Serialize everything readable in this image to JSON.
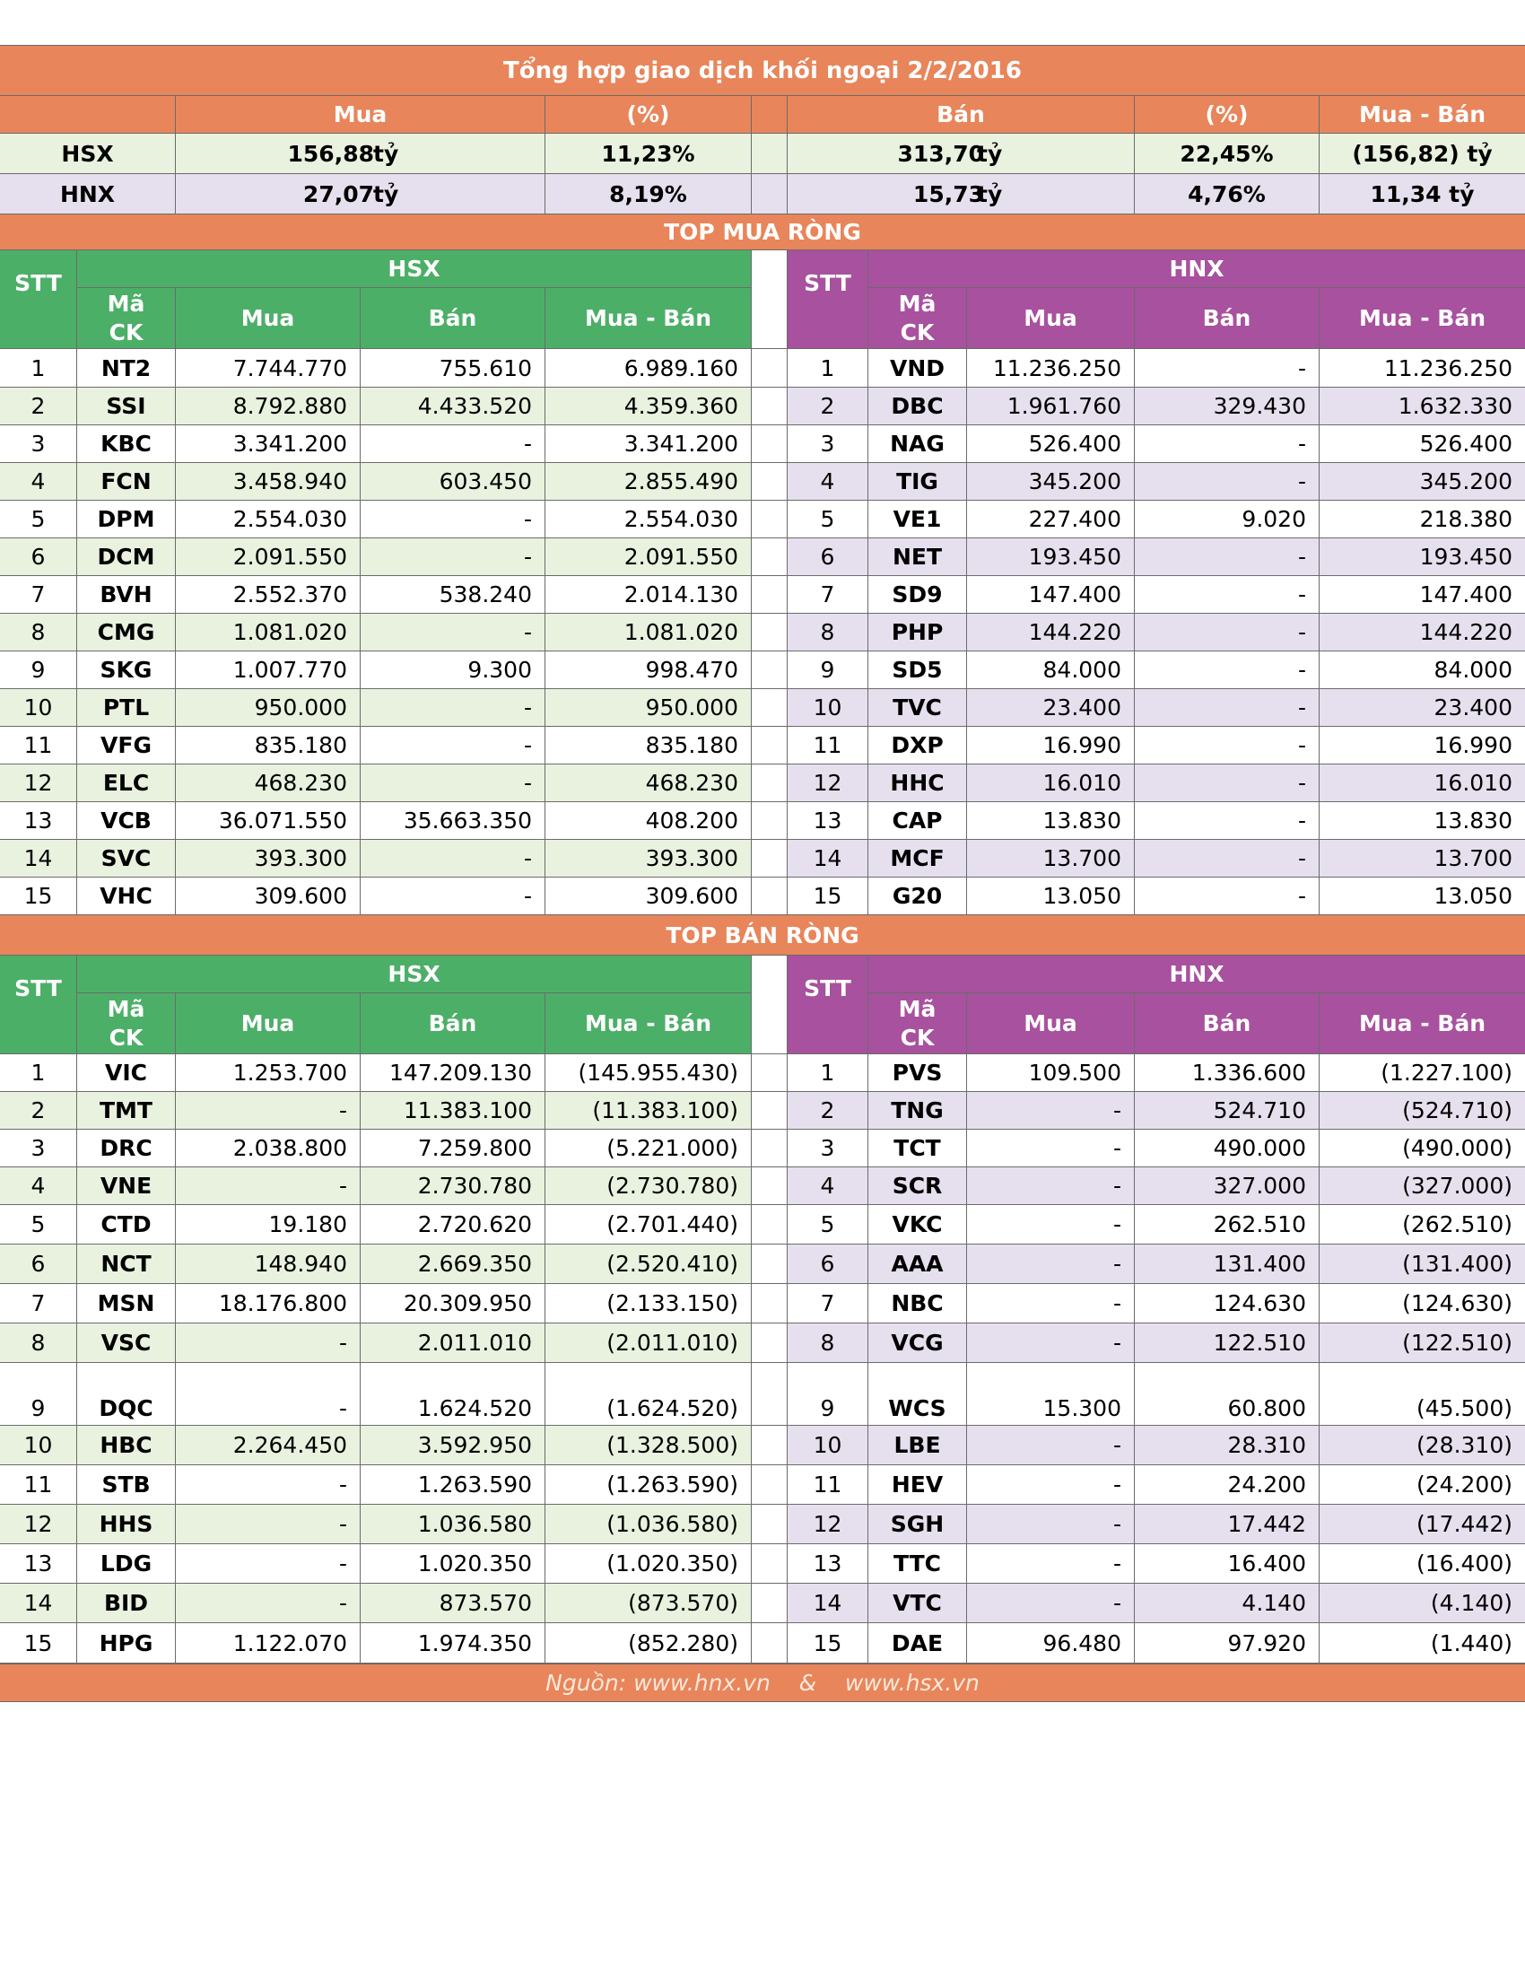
{
  "title": "Tổng hợp giao dịch khối ngoại 2/2/2016",
  "summary": {
    "headers": {
      "mua": "Mua",
      "pct1": "(%)",
      "ban": "Bán",
      "pct2": "(%)",
      "net": "Mua - Bán"
    },
    "unit": "tỷ",
    "rows": [
      {
        "exchange": "HSX",
        "mua": "156,88",
        "mua_pct": "11,23%",
        "ban": "313,70",
        "ban_pct": "22,45%",
        "net": "(156,82) tỷ"
      },
      {
        "exchange": "HNX",
        "mua": "27,07",
        "mua_pct": "8,19%",
        "ban": "15,73",
        "ban_pct": "4,76%",
        "net": "11,34 tỷ"
      }
    ]
  },
  "top_buy": {
    "title": "TOP MUA RÒNG",
    "hsx_label": "HSX",
    "hnx_label": "HNX",
    "headers": {
      "stt": "STT",
      "ma": "Mã",
      "ck": "CK",
      "mua": "Mua",
      "ban": "Bán",
      "net": "Mua - Bán"
    },
    "hsx_rows": [
      [
        "1",
        "NT2",
        "7.744.770",
        "755.610",
        "6.989.160"
      ],
      [
        "2",
        "SSI",
        "8.792.880",
        "4.433.520",
        "4.359.360"
      ],
      [
        "3",
        "KBC",
        "3.341.200",
        "-",
        "3.341.200"
      ],
      [
        "4",
        "FCN",
        "3.458.940",
        "603.450",
        "2.855.490"
      ],
      [
        "5",
        "DPM",
        "2.554.030",
        "-",
        "2.554.030"
      ],
      [
        "6",
        "DCM",
        "2.091.550",
        "-",
        "2.091.550"
      ],
      [
        "7",
        "BVH",
        "2.552.370",
        "538.240",
        "2.014.130"
      ],
      [
        "8",
        "CMG",
        "1.081.020",
        "-",
        "1.081.020"
      ],
      [
        "9",
        "SKG",
        "1.007.770",
        "9.300",
        "998.470"
      ],
      [
        "10",
        "PTL",
        "950.000",
        "-",
        "950.000"
      ],
      [
        "11",
        "VFG",
        "835.180",
        "-",
        "835.180"
      ],
      [
        "12",
        "ELC",
        "468.230",
        "-",
        "468.230"
      ],
      [
        "13",
        "VCB",
        "36.071.550",
        "35.663.350",
        "408.200"
      ],
      [
        "14",
        "SVC",
        "393.300",
        "-",
        "393.300"
      ],
      [
        "15",
        "VHC",
        "309.600",
        "-",
        "309.600"
      ]
    ],
    "hnx_rows": [
      [
        "1",
        "VND",
        "11.236.250",
        "-",
        "11.236.250"
      ],
      [
        "2",
        "DBC",
        "1.961.760",
        "329.430",
        "1.632.330"
      ],
      [
        "3",
        "NAG",
        "526.400",
        "-",
        "526.400"
      ],
      [
        "4",
        "TIG",
        "345.200",
        "-",
        "345.200"
      ],
      [
        "5",
        "VE1",
        "227.400",
        "9.020",
        "218.380"
      ],
      [
        "6",
        "NET",
        "193.450",
        "-",
        "193.450"
      ],
      [
        "7",
        "SD9",
        "147.400",
        "-",
        "147.400"
      ],
      [
        "8",
        "PHP",
        "144.220",
        "-",
        "144.220"
      ],
      [
        "9",
        "SD5",
        "84.000",
        "-",
        "84.000"
      ],
      [
        "10",
        "TVC",
        "23.400",
        "-",
        "23.400"
      ],
      [
        "11",
        "DXP",
        "16.990",
        "-",
        "16.990"
      ],
      [
        "12",
        "HHC",
        "16.010",
        "-",
        "16.010"
      ],
      [
        "13",
        "CAP",
        "13.830",
        "-",
        "13.830"
      ],
      [
        "14",
        "MCF",
        "13.700",
        "-",
        "13.700"
      ],
      [
        "15",
        "G20",
        "13.050",
        "-",
        "13.050"
      ]
    ]
  },
  "top_sell": {
    "title": "TOP BÁN RÒNG",
    "hsx_label": "HSX",
    "hnx_label": "HNX",
    "headers": {
      "stt": "STT",
      "ma": "Mã",
      "ck": "CK",
      "mua": "Mua",
      "ban": "Bán",
      "net": "Mua - Bán"
    },
    "hsx_rows": [
      [
        "1",
        "VIC",
        "1.253.700",
        "147.209.130",
        "(145.955.430)"
      ],
      [
        "2",
        "TMT",
        "-",
        "11.383.100",
        "(11.383.100)"
      ],
      [
        "3",
        "DRC",
        "2.038.800",
        "7.259.800",
        "(5.221.000)"
      ],
      [
        "4",
        "VNE",
        "-",
        "2.730.780",
        "(2.730.780)"
      ],
      [
        "5",
        "CTD",
        "19.180",
        "2.720.620",
        "(2.701.440)"
      ],
      [
        "6",
        "NCT",
        "148.940",
        "2.669.350",
        "(2.520.410)"
      ],
      [
        "7",
        "MSN",
        "18.176.800",
        "20.309.950",
        "(2.133.150)"
      ],
      [
        "8",
        "VSC",
        "-",
        "2.011.010",
        "(2.011.010)"
      ],
      [
        "9",
        "DQC",
        "-",
        "1.624.520",
        "(1.624.520)"
      ],
      [
        "10",
        "HBC",
        "2.264.450",
        "3.592.950",
        "(1.328.500)"
      ],
      [
        "11",
        "STB",
        "-",
        "1.263.590",
        "(1.263.590)"
      ],
      [
        "12",
        "HHS",
        "-",
        "1.036.580",
        "(1.036.580)"
      ],
      [
        "13",
        "LDG",
        "-",
        "1.020.350",
        "(1.020.350)"
      ],
      [
        "14",
        "BID",
        "-",
        "873.570",
        "(873.570)"
      ],
      [
        "15",
        "HPG",
        "1.122.070",
        "1.974.350",
        "(852.280)"
      ]
    ],
    "hnx_rows": [
      [
        "1",
        "PVS",
        "109.500",
        "1.336.600",
        "(1.227.100)"
      ],
      [
        "2",
        "TNG",
        "-",
        "524.710",
        "(524.710)"
      ],
      [
        "3",
        "TCT",
        "-",
        "490.000",
        "(490.000)"
      ],
      [
        "4",
        "SCR",
        "-",
        "327.000",
        "(327.000)"
      ],
      [
        "5",
        "VKC",
        "-",
        "262.510",
        "(262.510)"
      ],
      [
        "6",
        "AAA",
        "-",
        "131.400",
        "(131.400)"
      ],
      [
        "7",
        "NBC",
        "-",
        "124.630",
        "(124.630)"
      ],
      [
        "8",
        "VCG",
        "-",
        "122.510",
        "(122.510)"
      ],
      [
        "9",
        "WCS",
        "15.300",
        "60.800",
        "(45.500)"
      ],
      [
        "10",
        "LBE",
        "-",
        "28.310",
        "(28.310)"
      ],
      [
        "11",
        "HEV",
        "-",
        "24.200",
        "(24.200)"
      ],
      [
        "12",
        "SGH",
        "-",
        "17.442",
        "(17.442)"
      ],
      [
        "13",
        "TTC",
        "-",
        "16.400",
        "(16.400)"
      ],
      [
        "14",
        "VTC",
        "-",
        "4.140",
        "(4.140)"
      ],
      [
        "15",
        "DAE",
        "96.480",
        "97.920",
        "(1.440)"
      ]
    ]
  },
  "footer": {
    "source": "Nguồn: www.hnx.vn    &    www.hsx.vn"
  },
  "colors": {
    "orange": "#e8855a",
    "green": "#4caf68",
    "purple": "#a8519e",
    "light_green": "#e9f2df",
    "light_purple": "#e6e0ee"
  }
}
